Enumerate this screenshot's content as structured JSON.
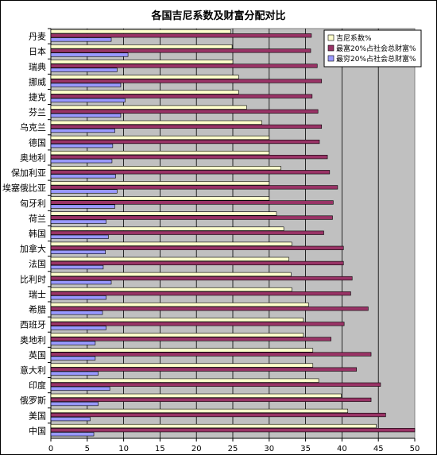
{
  "chart_data": {
    "type": "bar",
    "orientation": "horizontal",
    "title": "各国吉尼系数及财富分配对比",
    "categories": [
      "丹麦",
      "日本",
      "瑞典",
      "挪威",
      "捷克",
      "芬兰",
      "乌克兰",
      "德国",
      "奥地利",
      "保加利亚",
      "埃塞俄比亚",
      "匈牙利",
      "荷兰",
      "韩国",
      "加拿大",
      "法国",
      "比利时",
      "瑞士",
      "希腊",
      "西班牙",
      "奥地利",
      "英国",
      "意大利",
      "印度",
      "俄罗斯",
      "美国",
      "中国"
    ],
    "series": [
      {
        "name": "吉尼系数%",
        "color": "#ffffcc",
        "values": [
          24.7,
          24.9,
          25.0,
          25.8,
          25.8,
          26.9,
          29.0,
          30.0,
          30.0,
          31.6,
          30.0,
          30.0,
          31.0,
          32.0,
          33.1,
          32.7,
          33.0,
          33.1,
          35.4,
          34.7,
          34.7,
          36.0,
          36.0,
          36.8,
          39.9,
          40.8,
          44.7
        ]
      },
      {
        "name": "最富20%占社会总财富%",
        "color": "#993366",
        "values": [
          35.8,
          35.7,
          36.6,
          37.2,
          35.9,
          36.7,
          37.2,
          36.9,
          38.0,
          38.3,
          39.4,
          38.8,
          38.7,
          37.5,
          40.2,
          40.2,
          41.4,
          41.2,
          43.6,
          40.3,
          38.5,
          44.0,
          42.0,
          45.3,
          44.0,
          46.0,
          50.0
        ]
      },
      {
        "name": "最穷20%占社会总财富%",
        "color": "#9999ff",
        "values": [
          8.3,
          10.6,
          9.1,
          9.6,
          10.2,
          9.6,
          8.8,
          8.5,
          8.4,
          8.9,
          9.1,
          8.8,
          7.6,
          7.9,
          7.5,
          7.2,
          8.3,
          7.6,
          7.1,
          7.6,
          6.1,
          6.1,
          6.5,
          8.1,
          6.5,
          5.4,
          5.9
        ]
      }
    ],
    "xlim": [
      0,
      50
    ],
    "xticks": [
      0,
      5,
      10,
      15,
      20,
      25,
      30,
      35,
      40,
      45,
      50
    ],
    "legend_position": "top-right",
    "grid": "vertical major gridlines",
    "plot_background": "#c0c0c0"
  }
}
